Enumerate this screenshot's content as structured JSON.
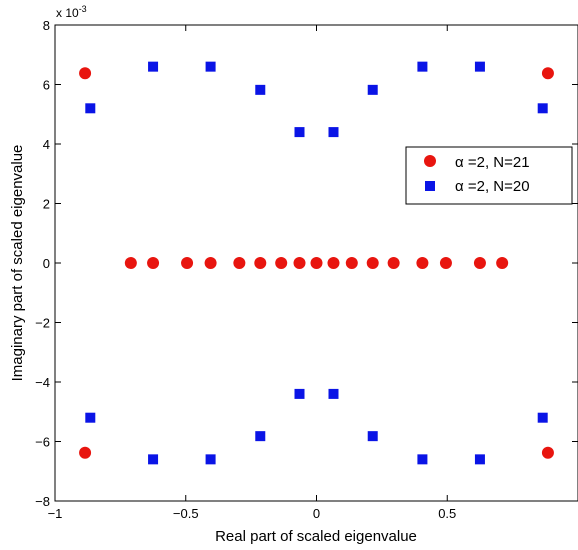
{
  "chart_data": {
    "type": "scatter",
    "title": "",
    "xlabel": "Real part of scaled eigenvalue",
    "ylabel": "Imaginary part of scaled eigenvalue",
    "y_exponent_label": "x 10",
    "y_exponent_power": "-3",
    "xlim": [
      -1,
      1
    ],
    "ylim": [
      -8,
      8
    ],
    "xticks": [
      -1,
      -0.5,
      0,
      0.5
    ],
    "xtick_labels": [
      "−1",
      "−0.5",
      "0",
      "0.5"
    ],
    "yticks": [
      -8,
      -6,
      -4,
      -2,
      0,
      2,
      4,
      6,
      8
    ],
    "ytick_labels": [
      "−8",
      "−6",
      "−4",
      "−2",
      "0",
      "2",
      "4",
      "6",
      "8"
    ],
    "grid": false,
    "legend_position": "right",
    "series": [
      {
        "name": "α =2, N=21",
        "marker": "circle",
        "color": "#e8150f",
        "points": [
          [
            -0.885,
            6.38
          ],
          [
            0.885,
            6.38
          ],
          [
            -0.885,
            -6.38
          ],
          [
            0.885,
            -6.38
          ],
          [
            -0.71,
            0
          ],
          [
            -0.625,
            0
          ],
          [
            -0.495,
            0
          ],
          [
            -0.405,
            0
          ],
          [
            -0.295,
            0
          ],
          [
            -0.215,
            0
          ],
          [
            -0.135,
            0
          ],
          [
            -0.065,
            0
          ],
          [
            0,
            0
          ],
          [
            0.065,
            0
          ],
          [
            0.135,
            0
          ],
          [
            0.215,
            0
          ],
          [
            0.295,
            0
          ],
          [
            0.405,
            0
          ],
          [
            0.495,
            0
          ],
          [
            0.625,
            0
          ],
          [
            0.71,
            0
          ]
        ]
      },
      {
        "name": "α =2, N=20",
        "marker": "square",
        "color": "#0a14e6",
        "points": [
          [
            -0.865,
            5.2
          ],
          [
            -0.625,
            6.6
          ],
          [
            -0.405,
            6.6
          ],
          [
            -0.215,
            5.82
          ],
          [
            -0.065,
            4.4
          ],
          [
            0.065,
            4.4
          ],
          [
            0.215,
            5.82
          ],
          [
            0.405,
            6.6
          ],
          [
            0.625,
            6.6
          ],
          [
            0.865,
            5.2
          ],
          [
            -0.865,
            -5.2
          ],
          [
            -0.625,
            -6.6
          ],
          [
            -0.405,
            -6.6
          ],
          [
            -0.215,
            -5.82
          ],
          [
            -0.065,
            -4.4
          ],
          [
            0.065,
            -4.4
          ],
          [
            0.215,
            -5.82
          ],
          [
            0.405,
            -6.6
          ],
          [
            0.625,
            -6.6
          ],
          [
            0.865,
            -5.2
          ]
        ]
      }
    ]
  }
}
